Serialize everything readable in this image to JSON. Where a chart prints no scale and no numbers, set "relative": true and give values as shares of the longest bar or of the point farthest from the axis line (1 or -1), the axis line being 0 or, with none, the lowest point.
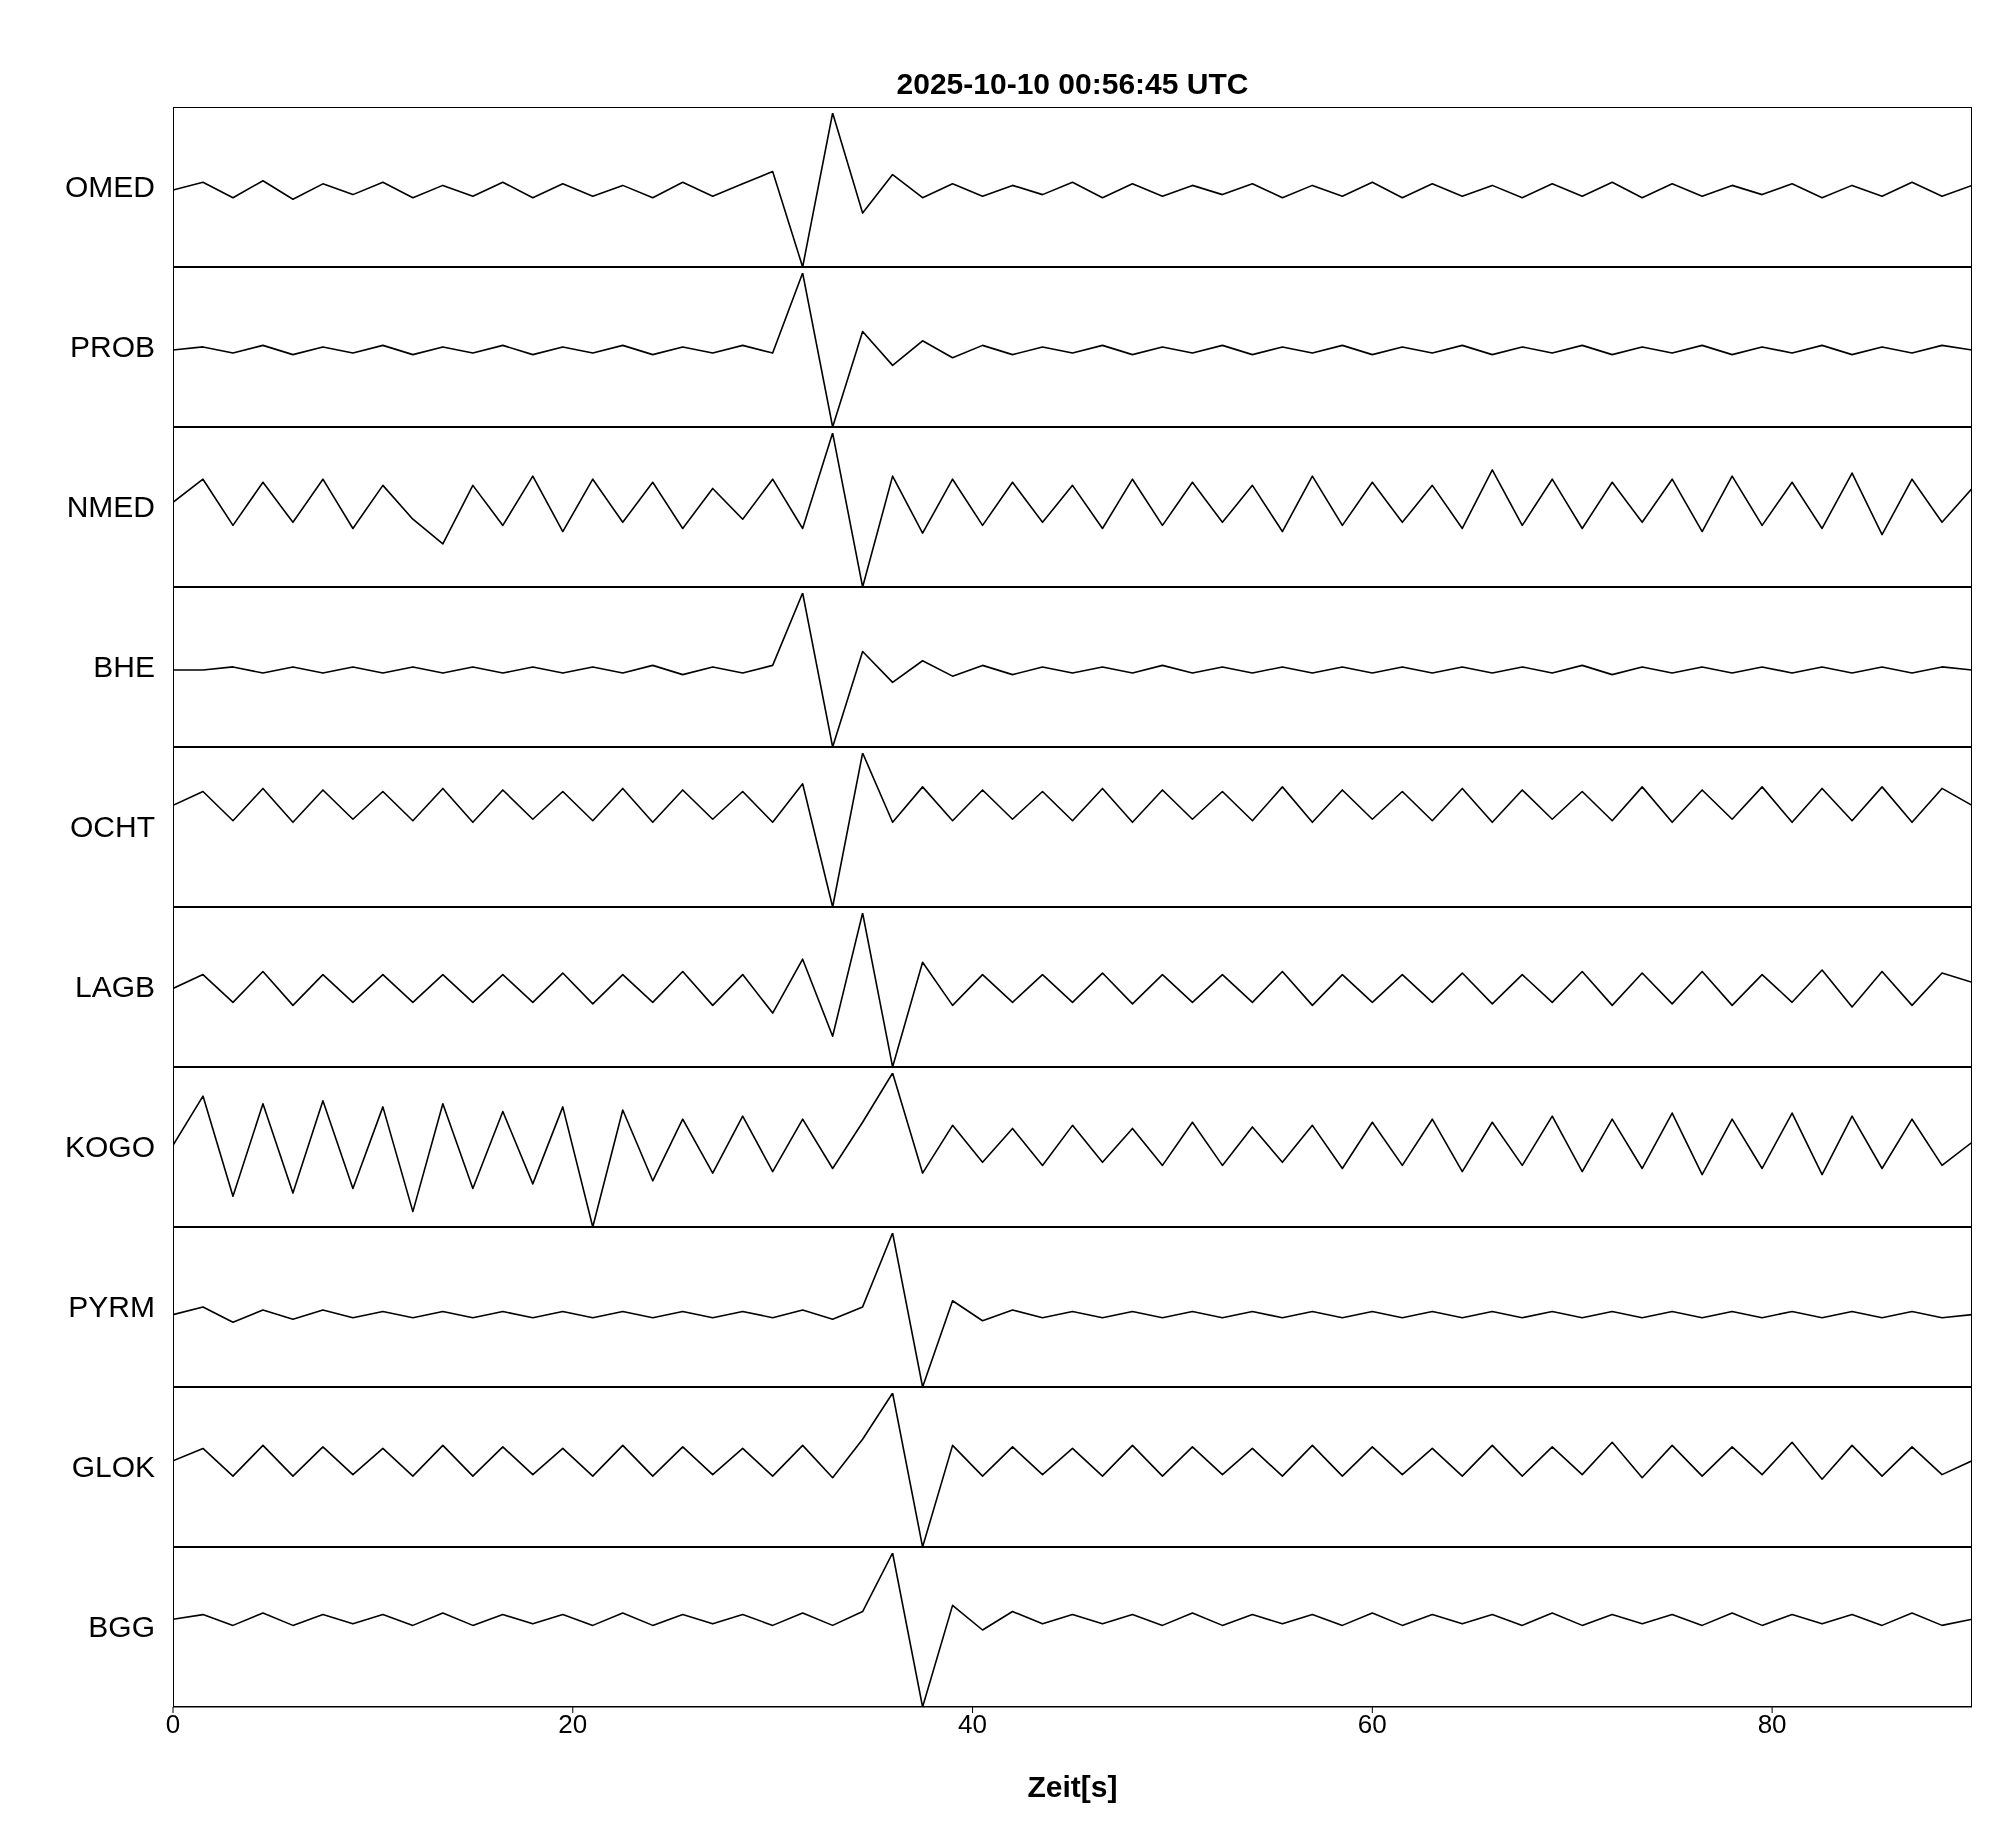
{
  "chart_data": [
    {
      "type": "line",
      "title": "2025-10-10  00:56:45 UTC",
      "ylabel": "OMED",
      "relative": true,
      "xlim": [
        0,
        90
      ],
      "tick_labels": false,
      "x": [
        0,
        1.5,
        3,
        4.5,
        6,
        7.5,
        9,
        10.5,
        12,
        13.5,
        15,
        16.5,
        18,
        19.5,
        21,
        22.5,
        24,
        25.5,
        27,
        28.5,
        30,
        31.5,
        33,
        34.5,
        36,
        37.5,
        39,
        40.5,
        42,
        43.5,
        45,
        46.5,
        48,
        49.5,
        51,
        52.5,
        54,
        55.5,
        57,
        58.5,
        60,
        61.5,
        63,
        64.5,
        66,
        67.5,
        69,
        70.5,
        72,
        73.5,
        75,
        76.5,
        78,
        79.5,
        81,
        82.5,
        84,
        85.5,
        87,
        88.5,
        90
      ],
      "series": [
        {
          "color": "#000000",
          "values": [
            0.5,
            0.55,
            0.45,
            0.56,
            0.44,
            0.54,
            0.47,
            0.55,
            0.45,
            0.53,
            0.46,
            0.55,
            0.45,
            0.54,
            0.46,
            0.53,
            0.45,
            0.55,
            0.46,
            0.54,
            0.62,
            0.0,
            1.0,
            0.35,
            0.6,
            0.45,
            0.54,
            0.46,
            0.53,
            0.47,
            0.55,
            0.45,
            0.54,
            0.46,
            0.53,
            0.47,
            0.54,
            0.45,
            0.53,
            0.46,
            0.55,
            0.45,
            0.54,
            0.46,
            0.53,
            0.45,
            0.54,
            0.46,
            0.55,
            0.45,
            0.54,
            0.46,
            0.53,
            0.47,
            0.54,
            0.45,
            0.53,
            0.46,
            0.55,
            0.46,
            0.53
          ]
        }
      ]
    },
    {
      "type": "line",
      "ylabel": "PROB",
      "relative": true,
      "xlim": [
        0,
        90
      ],
      "tick_labels": false,
      "x": [
        0,
        1.5,
        3,
        4.5,
        6,
        7.5,
        9,
        10.5,
        12,
        13.5,
        15,
        16.5,
        18,
        19.5,
        21,
        22.5,
        24,
        25.5,
        27,
        28.5,
        30,
        31.5,
        33,
        34.5,
        36,
        37.5,
        39,
        40.5,
        42,
        43.5,
        45,
        46.5,
        48,
        49.5,
        51,
        52.5,
        54,
        55.5,
        57,
        58.5,
        60,
        61.5,
        63,
        64.5,
        66,
        67.5,
        69,
        70.5,
        72,
        73.5,
        75,
        76.5,
        78,
        79.5,
        81,
        82.5,
        84,
        85.5,
        87,
        88.5,
        90
      ],
      "series": [
        {
          "color": "#000000",
          "values": [
            0.5,
            0.52,
            0.48,
            0.53,
            0.47,
            0.52,
            0.48,
            0.53,
            0.47,
            0.52,
            0.48,
            0.53,
            0.47,
            0.52,
            0.48,
            0.53,
            0.47,
            0.52,
            0.48,
            0.53,
            0.48,
            1.0,
            0.0,
            0.62,
            0.4,
            0.56,
            0.45,
            0.53,
            0.47,
            0.52,
            0.48,
            0.53,
            0.47,
            0.52,
            0.48,
            0.53,
            0.47,
            0.52,
            0.48,
            0.53,
            0.47,
            0.52,
            0.48,
            0.53,
            0.47,
            0.52,
            0.48,
            0.53,
            0.47,
            0.52,
            0.48,
            0.53,
            0.47,
            0.52,
            0.48,
            0.53,
            0.47,
            0.52,
            0.48,
            0.53,
            0.5
          ]
        }
      ]
    },
    {
      "type": "line",
      "ylabel": "NMED",
      "relative": true,
      "xlim": [
        0,
        90
      ],
      "tick_labels": false,
      "x": [
        0,
        1.5,
        3,
        4.5,
        6,
        7.5,
        9,
        10.5,
        12,
        13.5,
        15,
        16.5,
        18,
        19.5,
        21,
        22.5,
        24,
        25.5,
        27,
        28.5,
        30,
        31.5,
        33,
        34.5,
        36,
        37.5,
        39,
        40.5,
        42,
        43.5,
        45,
        46.5,
        48,
        49.5,
        51,
        52.5,
        54,
        55.5,
        57,
        58.5,
        60,
        61.5,
        63,
        64.5,
        66,
        67.5,
        69,
        70.5,
        72,
        73.5,
        75,
        76.5,
        78,
        79.5,
        81,
        82.5,
        84,
        85.5,
        87,
        88.5,
        90
      ],
      "series": [
        {
          "color": "#000000",
          "values": [
            0.55,
            0.7,
            0.4,
            0.68,
            0.42,
            0.7,
            0.38,
            0.66,
            0.44,
            0.28,
            0.66,
            0.4,
            0.72,
            0.36,
            0.7,
            0.42,
            0.68,
            0.38,
            0.64,
            0.44,
            0.7,
            0.38,
            1.0,
            0.0,
            0.72,
            0.35,
            0.7,
            0.4,
            0.68,
            0.42,
            0.66,
            0.38,
            0.7,
            0.4,
            0.68,
            0.42,
            0.66,
            0.36,
            0.72,
            0.4,
            0.68,
            0.42,
            0.66,
            0.38,
            0.76,
            0.4,
            0.7,
            0.38,
            0.68,
            0.42,
            0.7,
            0.36,
            0.72,
            0.4,
            0.68,
            0.38,
            0.74,
            0.34,
            0.7,
            0.42,
            0.64
          ]
        }
      ]
    },
    {
      "type": "line",
      "ylabel": "BHE",
      "relative": true,
      "xlim": [
        0,
        90
      ],
      "tick_labels": false,
      "x": [
        0,
        1.5,
        3,
        4.5,
        6,
        7.5,
        9,
        10.5,
        12,
        13.5,
        15,
        16.5,
        18,
        19.5,
        21,
        22.5,
        24,
        25.5,
        27,
        28.5,
        30,
        31.5,
        33,
        34.5,
        36,
        37.5,
        39,
        40.5,
        42,
        43.5,
        45,
        46.5,
        48,
        49.5,
        51,
        52.5,
        54,
        55.5,
        57,
        58.5,
        60,
        61.5,
        63,
        64.5,
        66,
        67.5,
        69,
        70.5,
        72,
        73.5,
        75,
        76.5,
        78,
        79.5,
        81,
        82.5,
        84,
        85.5,
        87,
        88.5,
        90
      ],
      "series": [
        {
          "color": "#000000",
          "values": [
            0.5,
            0.5,
            0.52,
            0.48,
            0.52,
            0.48,
            0.52,
            0.48,
            0.52,
            0.48,
            0.52,
            0.48,
            0.52,
            0.48,
            0.52,
            0.48,
            0.53,
            0.47,
            0.52,
            0.48,
            0.53,
            1.0,
            0.0,
            0.62,
            0.42,
            0.56,
            0.46,
            0.53,
            0.47,
            0.52,
            0.48,
            0.52,
            0.48,
            0.53,
            0.48,
            0.52,
            0.48,
            0.52,
            0.48,
            0.52,
            0.48,
            0.52,
            0.48,
            0.52,
            0.48,
            0.52,
            0.48,
            0.53,
            0.47,
            0.52,
            0.48,
            0.52,
            0.48,
            0.52,
            0.48,
            0.52,
            0.48,
            0.52,
            0.48,
            0.52,
            0.5
          ]
        }
      ]
    },
    {
      "type": "line",
      "ylabel": "OCHT",
      "relative": true,
      "xlim": [
        0,
        90
      ],
      "tick_labels": false,
      "x": [
        0,
        1.5,
        3,
        4.5,
        6,
        7.5,
        9,
        10.5,
        12,
        13.5,
        15,
        16.5,
        18,
        19.5,
        21,
        22.5,
        24,
        25.5,
        27,
        28.5,
        30,
        31.5,
        33,
        34.5,
        36,
        37.5,
        39,
        40.5,
        42,
        43.5,
        45,
        46.5,
        48,
        49.5,
        51,
        52.5,
        54,
        55.5,
        57,
        58.5,
        60,
        61.5,
        63,
        64.5,
        66,
        67.5,
        69,
        70.5,
        72,
        73.5,
        75,
        76.5,
        78,
        79.5,
        81,
        82.5,
        84,
        85.5,
        87,
        88.5,
        90
      ],
      "series": [
        {
          "color": "#000000",
          "values": [
            0.66,
            0.75,
            0.56,
            0.77,
            0.55,
            0.76,
            0.57,
            0.75,
            0.56,
            0.77,
            0.55,
            0.76,
            0.57,
            0.75,
            0.56,
            0.77,
            0.55,
            0.76,
            0.57,
            0.75,
            0.55,
            0.8,
            0.0,
            1.0,
            0.55,
            0.78,
            0.56,
            0.76,
            0.57,
            0.75,
            0.56,
            0.77,
            0.55,
            0.76,
            0.57,
            0.75,
            0.56,
            0.78,
            0.55,
            0.76,
            0.57,
            0.75,
            0.56,
            0.77,
            0.55,
            0.76,
            0.57,
            0.75,
            0.56,
            0.78,
            0.55,
            0.76,
            0.57,
            0.78,
            0.55,
            0.77,
            0.56,
            0.78,
            0.55,
            0.77,
            0.66
          ]
        }
      ]
    },
    {
      "type": "line",
      "ylabel": "LAGB",
      "relative": true,
      "xlim": [
        0,
        90
      ],
      "tick_labels": false,
      "x": [
        0,
        1.5,
        3,
        4.5,
        6,
        7.5,
        9,
        10.5,
        12,
        13.5,
        15,
        16.5,
        18,
        19.5,
        21,
        22.5,
        24,
        25.5,
        27,
        28.5,
        30,
        31.5,
        33,
        34.5,
        36,
        37.5,
        39,
        40.5,
        42,
        43.5,
        45,
        46.5,
        48,
        49.5,
        51,
        52.5,
        54,
        55.5,
        57,
        58.5,
        60,
        61.5,
        63,
        64.5,
        66,
        67.5,
        69,
        70.5,
        72,
        73.5,
        75,
        76.5,
        78,
        79.5,
        81,
        82.5,
        84,
        85.5,
        87,
        88.5,
        90
      ],
      "series": [
        {
          "color": "#000000",
          "values": [
            0.51,
            0.6,
            0.42,
            0.62,
            0.4,
            0.6,
            0.42,
            0.6,
            0.42,
            0.6,
            0.42,
            0.6,
            0.42,
            0.61,
            0.41,
            0.6,
            0.42,
            0.62,
            0.4,
            0.6,
            0.35,
            0.7,
            0.2,
            1.0,
            0.0,
            0.68,
            0.4,
            0.6,
            0.42,
            0.6,
            0.42,
            0.61,
            0.41,
            0.6,
            0.42,
            0.6,
            0.42,
            0.62,
            0.4,
            0.6,
            0.42,
            0.6,
            0.42,
            0.61,
            0.41,
            0.6,
            0.42,
            0.62,
            0.4,
            0.61,
            0.41,
            0.62,
            0.4,
            0.6,
            0.42,
            0.63,
            0.39,
            0.62,
            0.4,
            0.61,
            0.55
          ]
        }
      ]
    },
    {
      "type": "line",
      "ylabel": "KOGO",
      "relative": true,
      "xlim": [
        0,
        90
      ],
      "tick_labels": false,
      "x": [
        0,
        1.5,
        3,
        4.5,
        6,
        7.5,
        9,
        10.5,
        12,
        13.5,
        15,
        16.5,
        18,
        19.5,
        21,
        22.5,
        24,
        25.5,
        27,
        28.5,
        30,
        31.5,
        33,
        34.5,
        36,
        37.5,
        39,
        40.5,
        42,
        43.5,
        45,
        46.5,
        48,
        49.5,
        51,
        52.5,
        54,
        55.5,
        57,
        58.5,
        60,
        61.5,
        63,
        64.5,
        66,
        67.5,
        69,
        70.5,
        72,
        73.5,
        75,
        76.5,
        78,
        79.5,
        81,
        82.5,
        84,
        85.5,
        87,
        88.5,
        90
      ],
      "series": [
        {
          "color": "#000000",
          "values": [
            0.53,
            0.85,
            0.2,
            0.8,
            0.22,
            0.82,
            0.25,
            0.78,
            0.1,
            0.8,
            0.25,
            0.75,
            0.28,
            0.78,
            0.0,
            0.76,
            0.3,
            0.7,
            0.35,
            0.72,
            0.36,
            0.7,
            0.38,
            0.68,
            1.0,
            0.35,
            0.66,
            0.42,
            0.64,
            0.4,
            0.66,
            0.42,
            0.64,
            0.4,
            0.68,
            0.4,
            0.65,
            0.42,
            0.66,
            0.38,
            0.68,
            0.4,
            0.7,
            0.36,
            0.68,
            0.4,
            0.72,
            0.36,
            0.7,
            0.38,
            0.74,
            0.34,
            0.7,
            0.38,
            0.74,
            0.34,
            0.72,
            0.38,
            0.7,
            0.4,
            0.55
          ]
        }
      ]
    },
    {
      "type": "line",
      "ylabel": "PYRM",
      "relative": true,
      "xlim": [
        0,
        90
      ],
      "tick_labels": false,
      "x": [
        0,
        1.5,
        3,
        4.5,
        6,
        7.5,
        9,
        10.5,
        12,
        13.5,
        15,
        16.5,
        18,
        19.5,
        21,
        22.5,
        24,
        25.5,
        27,
        28.5,
        30,
        31.5,
        33,
        34.5,
        36,
        37.5,
        39,
        40.5,
        42,
        43.5,
        45,
        46.5,
        48,
        49.5,
        51,
        52.5,
        54,
        55.5,
        57,
        58.5,
        60,
        61.5,
        63,
        64.5,
        66,
        67.5,
        69,
        70.5,
        72,
        73.5,
        75,
        76.5,
        78,
        79.5,
        81,
        82.5,
        84,
        85.5,
        87,
        88.5,
        90
      ],
      "series": [
        {
          "color": "#000000",
          "values": [
            0.47,
            0.52,
            0.42,
            0.5,
            0.44,
            0.5,
            0.45,
            0.49,
            0.45,
            0.49,
            0.45,
            0.49,
            0.45,
            0.49,
            0.45,
            0.49,
            0.45,
            0.49,
            0.45,
            0.49,
            0.45,
            0.5,
            0.44,
            0.52,
            1.0,
            0.0,
            0.56,
            0.43,
            0.5,
            0.45,
            0.49,
            0.45,
            0.49,
            0.45,
            0.49,
            0.45,
            0.49,
            0.45,
            0.49,
            0.45,
            0.49,
            0.45,
            0.49,
            0.45,
            0.49,
            0.45,
            0.49,
            0.45,
            0.49,
            0.45,
            0.49,
            0.45,
            0.49,
            0.45,
            0.49,
            0.45,
            0.49,
            0.45,
            0.49,
            0.45,
            0.47
          ]
        }
      ]
    },
    {
      "type": "line",
      "ylabel": "GLOK",
      "relative": true,
      "xlim": [
        0,
        90
      ],
      "tick_labels": false,
      "x": [
        0,
        1.5,
        3,
        4.5,
        6,
        7.5,
        9,
        10.5,
        12,
        13.5,
        15,
        16.5,
        18,
        19.5,
        21,
        22.5,
        24,
        25.5,
        27,
        28.5,
        30,
        31.5,
        33,
        34.5,
        36,
        37.5,
        39,
        40.5,
        42,
        43.5,
        45,
        46.5,
        48,
        49.5,
        51,
        52.5,
        54,
        55.5,
        57,
        58.5,
        60,
        61.5,
        63,
        64.5,
        66,
        67.5,
        69,
        70.5,
        72,
        73.5,
        75,
        76.5,
        78,
        79.5,
        81,
        82.5,
        84,
        85.5,
        87,
        88.5,
        90
      ],
      "series": [
        {
          "color": "#000000",
          "values": [
            0.56,
            0.64,
            0.46,
            0.66,
            0.46,
            0.65,
            0.47,
            0.64,
            0.46,
            0.66,
            0.46,
            0.65,
            0.47,
            0.64,
            0.46,
            0.66,
            0.46,
            0.65,
            0.47,
            0.64,
            0.46,
            0.66,
            0.45,
            0.7,
            1.0,
            0.0,
            0.66,
            0.46,
            0.65,
            0.47,
            0.64,
            0.46,
            0.66,
            0.46,
            0.65,
            0.47,
            0.64,
            0.46,
            0.66,
            0.46,
            0.65,
            0.47,
            0.64,
            0.46,
            0.66,
            0.46,
            0.65,
            0.47,
            0.68,
            0.45,
            0.66,
            0.46,
            0.65,
            0.47,
            0.68,
            0.44,
            0.66,
            0.46,
            0.65,
            0.47,
            0.56
          ]
        }
      ]
    },
    {
      "type": "line",
      "ylabel": "BGG",
      "xlabel": "Zeit[s]",
      "relative": true,
      "xlim": [
        0,
        90
      ],
      "xticks": [
        0,
        20,
        40,
        60,
        80
      ],
      "tick_labels": "x",
      "x": [
        0,
        1.5,
        3,
        4.5,
        6,
        7.5,
        9,
        10.5,
        12,
        13.5,
        15,
        16.5,
        18,
        19.5,
        21,
        22.5,
        24,
        25.5,
        27,
        28.5,
        30,
        31.5,
        33,
        34.5,
        36,
        37.5,
        39,
        40.5,
        42,
        43.5,
        45,
        46.5,
        48,
        49.5,
        51,
        52.5,
        54,
        55.5,
        57,
        58.5,
        60,
        61.5,
        63,
        64.5,
        66,
        67.5,
        69,
        70.5,
        72,
        73.5,
        75,
        76.5,
        78,
        79.5,
        81,
        82.5,
        84,
        85.5,
        87,
        88.5,
        90
      ],
      "series": [
        {
          "color": "#000000",
          "values": [
            0.57,
            0.6,
            0.53,
            0.61,
            0.53,
            0.6,
            0.54,
            0.6,
            0.53,
            0.61,
            0.53,
            0.6,
            0.54,
            0.6,
            0.53,
            0.61,
            0.53,
            0.6,
            0.54,
            0.6,
            0.53,
            0.61,
            0.53,
            0.62,
            1.0,
            0.0,
            0.66,
            0.5,
            0.62,
            0.54,
            0.6,
            0.54,
            0.6,
            0.53,
            0.61,
            0.53,
            0.6,
            0.54,
            0.6,
            0.53,
            0.61,
            0.53,
            0.6,
            0.54,
            0.6,
            0.53,
            0.61,
            0.53,
            0.6,
            0.54,
            0.6,
            0.53,
            0.61,
            0.53,
            0.6,
            0.54,
            0.6,
            0.53,
            0.61,
            0.53,
            0.57
          ]
        }
      ]
    }
  ]
}
